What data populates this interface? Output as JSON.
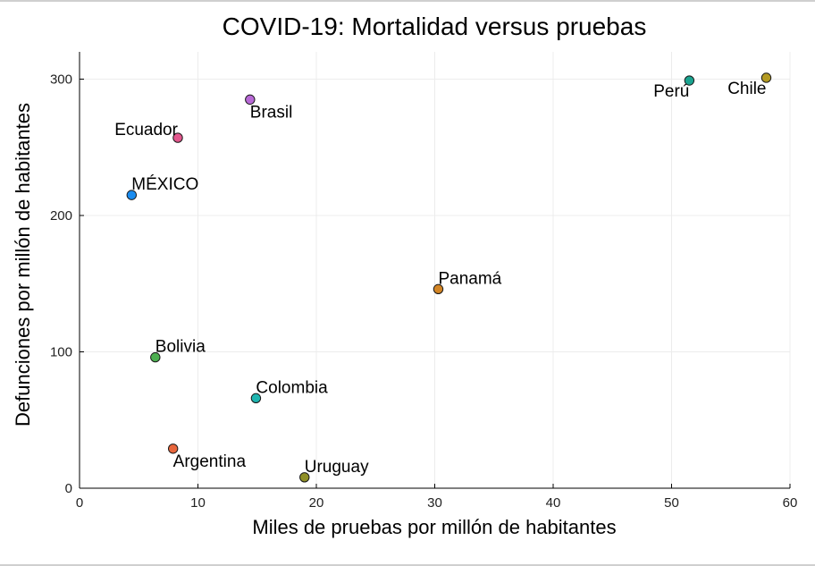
{
  "chart_data": {
    "type": "scatter",
    "title": "COVID-19: Mortalidad versus pruebas",
    "xlabel": "Miles de pruebas por millón de habitantes",
    "ylabel": "Defunciones por millón de habitantes",
    "xlim": [
      0,
      60
    ],
    "ylim": [
      0,
      320
    ],
    "xticks": [
      0,
      10,
      20,
      30,
      40,
      50,
      60
    ],
    "yticks": [
      0,
      100,
      200,
      300
    ],
    "grid": true,
    "points": [
      {
        "label": "Perú",
        "x": 51.5,
        "y": 299,
        "color": "#1aa38f",
        "label_pos": "below-left"
      },
      {
        "label": "Chile",
        "x": 58.0,
        "y": 301,
        "color": "#b39a22",
        "label_pos": "below-left"
      },
      {
        "label": "Brasil",
        "x": 14.4,
        "y": 285,
        "color": "#b869d6",
        "label_pos": "below-right"
      },
      {
        "label": "Ecuador",
        "x": 8.3,
        "y": 257,
        "color": "#e2578d",
        "label_pos": "above-left"
      },
      {
        "label": "MÉXICO",
        "x": 4.4,
        "y": 215,
        "color": "#1a8cf0",
        "label_pos": "above-right",
        "label_color": "#ff0000"
      },
      {
        "label": "Panamá",
        "x": 30.3,
        "y": 146,
        "color": "#d38525",
        "label_pos": "above-right"
      },
      {
        "label": "Bolivia",
        "x": 6.4,
        "y": 96,
        "color": "#4caf50",
        "label_pos": "above-right"
      },
      {
        "label": "Colombia",
        "x": 14.9,
        "y": 66,
        "color": "#1fb5b0",
        "label_pos": "above-right"
      },
      {
        "label": "Argentina",
        "x": 7.9,
        "y": 29,
        "color": "#e8663c",
        "label_pos": "below-right"
      },
      {
        "label": "Uruguay",
        "x": 19.0,
        "y": 8,
        "color": "#8f8f25",
        "label_pos": "above-right"
      }
    ]
  }
}
